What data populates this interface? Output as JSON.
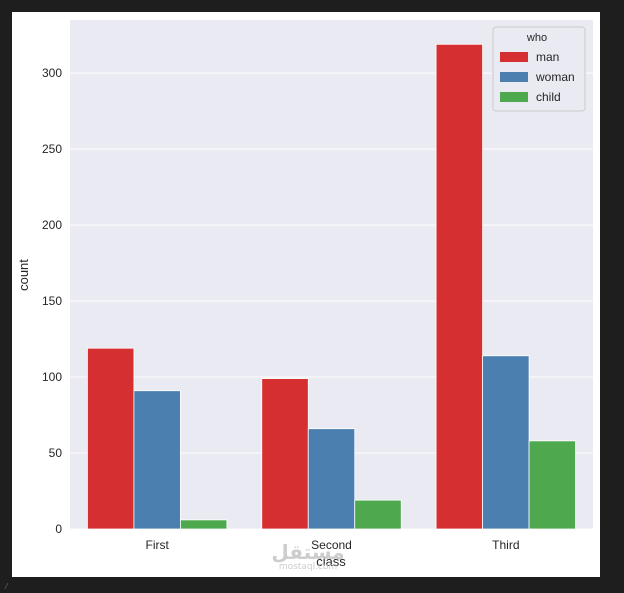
{
  "chart_data": {
    "type": "bar",
    "title": "",
    "xlabel": "class",
    "ylabel": "count",
    "categories": [
      "First",
      "Second",
      "Third"
    ],
    "ylim": [
      0,
      335
    ],
    "yticks": [
      0,
      50,
      100,
      150,
      200,
      250,
      300
    ],
    "grid": true,
    "legend": {
      "title": "who",
      "placement": "top-right"
    },
    "series": [
      {
        "name": "man",
        "color": "#d62f32",
        "values": [
          119,
          99,
          319
        ]
      },
      {
        "name": "woman",
        "color": "#4a7fb0",
        "values": [
          91,
          66,
          114
        ]
      },
      {
        "name": "child",
        "color": "#4ea84e",
        "values": [
          6,
          19,
          58
        ]
      }
    ]
  },
  "watermark": {
    "main": "مستقل",
    "sub": "mostaql.com"
  },
  "corner_mark": "⁄"
}
